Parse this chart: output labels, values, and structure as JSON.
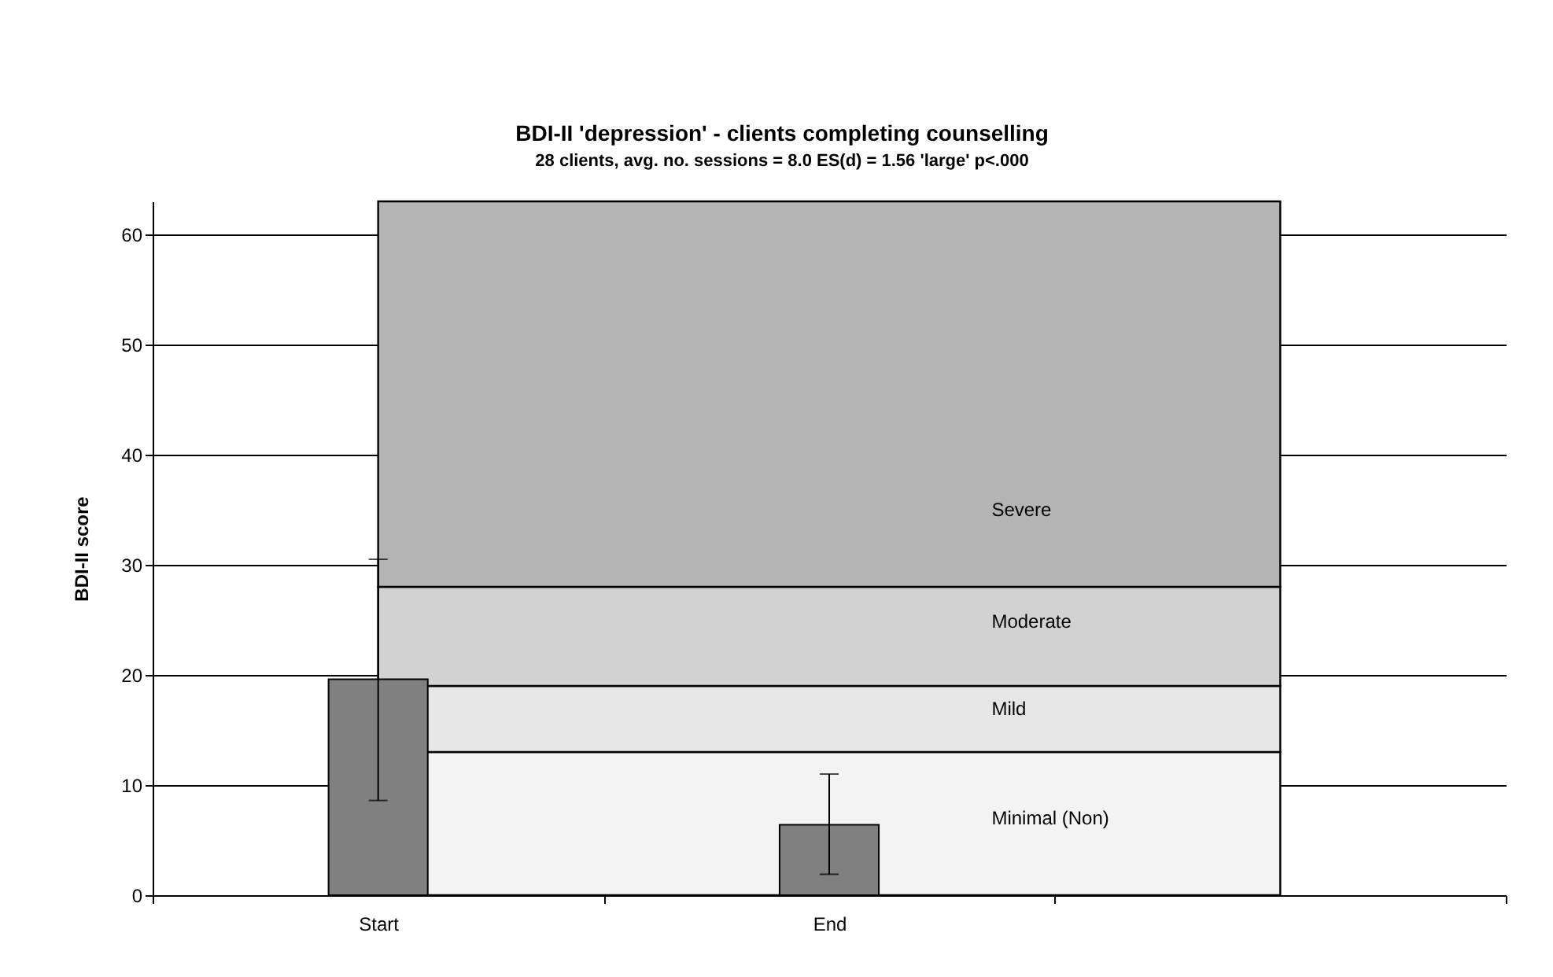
{
  "chart_data": {
    "type": "bar",
    "title": "BDI-II 'depression' - clients completing counselling",
    "subtitle": "28 clients, avg. no. sessions = 8.0 ES(d) = 1.56 'large' p<.000",
    "ylabel": "BDI-II score",
    "categories": [
      "Start",
      "End",
      null
    ],
    "ylim": [
      0,
      63
    ],
    "yticks": [
      0,
      10,
      20,
      30,
      40,
      50,
      60
    ],
    "grid": "y",
    "series": [
      {
        "color": "#808080",
        "values": [
          19.6,
          6.4,
          null
        ],
        "errors": [
          [
            8.6,
            30.5
          ],
          [
            1.9,
            11.0
          ],
          null
        ]
      }
    ],
    "bands": [
      {
        "axis": "y",
        "from": 0,
        "to": 13,
        "label": "Minimal (Non)",
        "color": "#f3f3f3"
      },
      {
        "axis": "y",
        "from": 13,
        "to": 19,
        "label": "Mild",
        "color": "#e6e6e6"
      },
      {
        "axis": "y",
        "from": 19,
        "to": 28,
        "label": "Moderate",
        "color": "#d2d2d2"
      },
      {
        "axis": "y",
        "from": 28,
        "to": 63,
        "label": "Severe",
        "color": "#b4b4b4"
      }
    ]
  }
}
